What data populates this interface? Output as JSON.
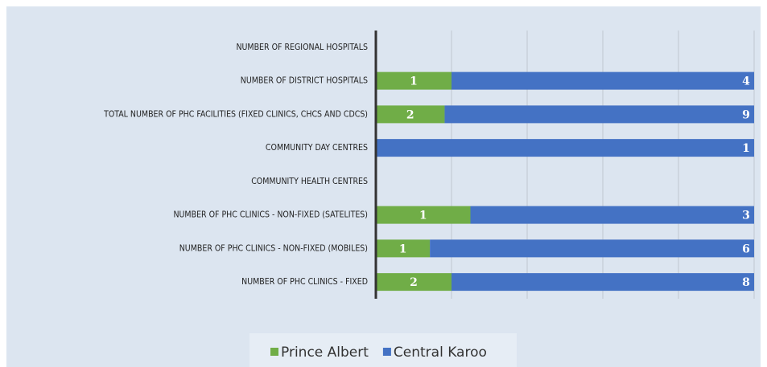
{
  "chart_data": {
    "type": "bar",
    "orientation": "horizontal",
    "stacking": "percent",
    "categories": [
      "NUMBER OF REGIONAL HOSPITALS",
      "NUMBER OF DISTRICT HOSPITALS",
      "TOTAL NUMBER OF PHC FACILITIES (FIXED CLINICS, CHCS AND CDCS)",
      "COMMUNITY DAY CENTRES",
      "COMMUNITY HEALTH CENTRES",
      "NUMBER OF PHC CLINICS - NON-FIXED (SATELITES)",
      "NUMBER OF PHC CLINICS - NON-FIXED (MOBILES)",
      "NUMBER OF PHC CLINICS - FIXED"
    ],
    "series": [
      {
        "name": "Prince Albert",
        "color": "#70ad47",
        "values": [
          null,
          1,
          2,
          null,
          null,
          1,
          1,
          2
        ]
      },
      {
        "name": "Central Karoo",
        "color": "#4472c4",
        "values": [
          null,
          4,
          9,
          1,
          null,
          3,
          6,
          8
        ]
      }
    ],
    "xlim": [
      0,
      100
    ],
    "xticks": [
      0,
      20,
      40,
      60,
      80,
      100
    ],
    "grid": true,
    "legend": "bottom"
  }
}
